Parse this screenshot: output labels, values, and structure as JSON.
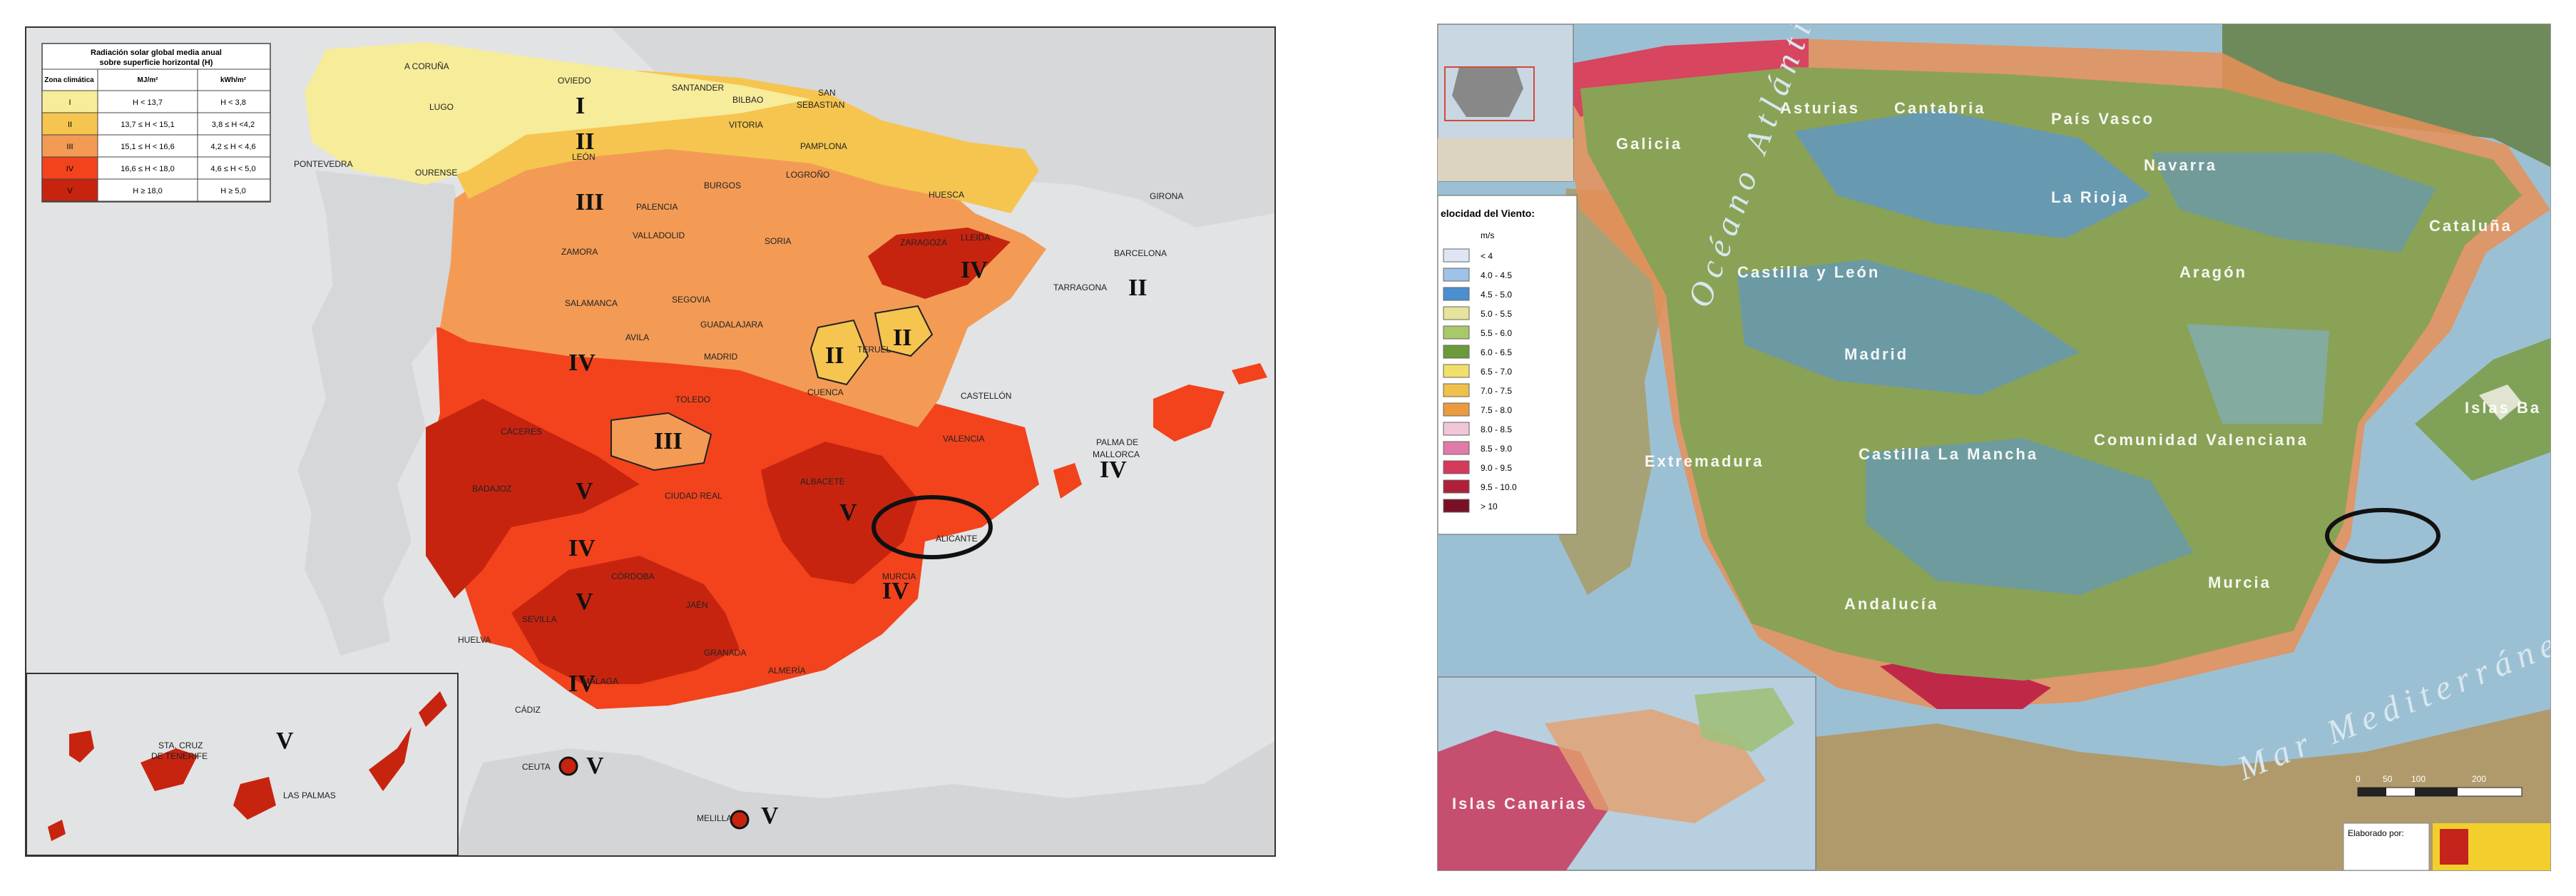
{
  "left_map": {
    "legend": {
      "title_line1": "Radiación solar global media anual",
      "title_line2": "sobre superficie horizontal (H)",
      "headers": [
        "Zona climática",
        "MJ/m²",
        "kWh/m²"
      ],
      "rows": [
        {
          "zone": "I",
          "mj": "H < 13,7",
          "kwh": "H < 3,8",
          "color": "#f6ec9a"
        },
        {
          "zone": "II",
          "mj": "13,7 ≤ H < 15,1",
          "kwh": "3,8 ≤ H <4,2",
          "color": "#f5c54f"
        },
        {
          "zone": "III",
          "mj": "15,1 ≤ H < 16,6",
          "kwh": "4,2 ≤ H < 4,6",
          "color": "#f39b55"
        },
        {
          "zone": "IV",
          "mj": "16,6 ≤ H < 18,0",
          "kwh": "4,6 ≤ H < 5,0",
          "color": "#f2431c"
        },
        {
          "zone": "V",
          "mj": "H ≥ 18,0",
          "kwh": "H ≥ 5,0",
          "color": "#c72410"
        }
      ]
    },
    "zone_labels": {
      "i": "I",
      "ii": "II",
      "iii": "III",
      "iv": "IV",
      "v": "V"
    },
    "cities": {
      "a_coruna": "A CORUÑA",
      "oviedo": "OVIEDO",
      "santander": "SANTANDER",
      "bilbao": "BILBAO",
      "san_sebastian_1": "SAN",
      "san_sebastian_2": "SEBASTIAN",
      "lugo": "LUGO",
      "vitoria": "VITORIA",
      "pamplona": "PAMPLONA",
      "pontevedra": "PONTEVEDRA",
      "ourense": "OURENSE",
      "leon": "LEÓN",
      "burgos": "BURGOS",
      "logrono": "LOGROÑO",
      "huesca": "HUESCA",
      "girona": "GIRONA",
      "palencia": "PALENCIA",
      "valladolid": "VALLADOLID",
      "soria": "SORIA",
      "zaragoza": "ZARAGOZA",
      "lleida": "LLEIDA",
      "barcelona": "BARCELONA",
      "zamora": "ZAMORA",
      "tarragona": "TARRAGONA",
      "salamanca": "SALAMANCA",
      "segovia": "SEGOVIA",
      "guadalajara": "GUADALAJARA",
      "avila": "AVILA",
      "madrid": "MADRID",
      "teruel": "TERUEL",
      "cuenca": "CUENCA",
      "castellon": "CASTELLÓN",
      "toledo": "TOLEDO",
      "caceres": "CÁCERES",
      "valencia": "VALENCIA",
      "palma_1": "PALMA DE",
      "palma_2": "MALLORCA",
      "badajoz": "BADAJOZ",
      "ciudad_real": "CIUDAD REAL",
      "albacete": "ALBACETE",
      "alicante": "ALICANTE",
      "cordoba": "CÓRDOBA",
      "murcia": "MURCIA",
      "jaen": "JAÉN",
      "sevilla": "SEVILLA",
      "huelva": "HUELVA",
      "granada": "GRANADA",
      "almeria": "ALMERÍA",
      "malaga": "MÁLAGA",
      "cadiz": "CÁDIZ",
      "ceuta": "CEUTA",
      "melilla": "MELILLA",
      "sta_cruz_1": "STA. CRUZ",
      "sta_cruz_2": "DE TENERIFE",
      "las_palmas": "LAS PALMAS"
    },
    "highlight": "Alicante"
  },
  "right_map": {
    "legend": {
      "title": "elocidad del Viento:",
      "unit": "m/s",
      "rows": [
        {
          "label": "< 4",
          "color": "#dde6f2"
        },
        {
          "label": "4.0 - 4.5",
          "color": "#9fc2e6"
        },
        {
          "label": "4.5 - 5.0",
          "color": "#4a8fd0"
        },
        {
          "label": "5.0 - 5.5",
          "color": "#e6e39a"
        },
        {
          "label": "5.5 - 6.0",
          "color": "#a8c86a"
        },
        {
          "label": "6.0 - 6.5",
          "color": "#6b9a3a"
        },
        {
          "label": "6.5 - 7.0",
          "color": "#f2df6a"
        },
        {
          "label": "7.0 - 7.5",
          "color": "#f0c14a"
        },
        {
          "label": "7.5 - 8.0",
          "color": "#ec9a3f"
        },
        {
          "label": "8.0 - 8.5",
          "color": "#f1c6d8"
        },
        {
          "label": "8.5 - 9.0",
          "color": "#e07aa8"
        },
        {
          "label": "9.0 - 9.5",
          "color": "#d43a5a"
        },
        {
          "label": "9.5 - 10.0",
          "color": "#b0203a"
        },
        {
          "label": "> 10",
          "color": "#7a1025"
        }
      ]
    },
    "regions": {
      "asturias": "Asturias",
      "cantabria": "Cantabria",
      "pais_vasco": "País Vasco",
      "galicia": "Galicia",
      "navarra": "Navarra",
      "la_rioja": "La Rioja",
      "cataluna": "Cataluña",
      "castilla_leon": "Castilla y León",
      "aragon": "Aragón",
      "madrid": "Madrid",
      "extremadura": "Extremadura",
      "castilla_mancha": "Castilla La Mancha",
      "com_valenciana": "Comunidad Valenciana",
      "islas_baleares": "Islas Ba",
      "murcia": "Murcia",
      "andalucia": "Andalucía",
      "islas_canarias": "Islas Canarias"
    },
    "seas": {
      "atlantico": "Océano Atlántico",
      "mediterraneo": "Mar Mediterráneo"
    },
    "scale": {
      "ticks": [
        "0",
        "50",
        "100",
        "200"
      ]
    },
    "credit": "Elaborado por:",
    "highlight": "Alicante"
  }
}
